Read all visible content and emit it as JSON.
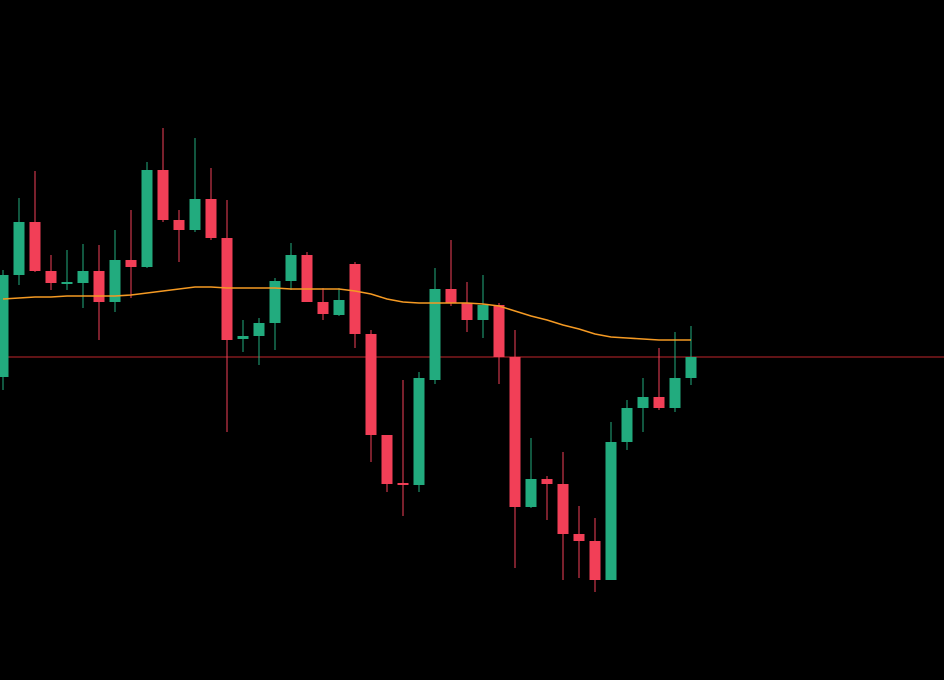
{
  "chart_data": {
    "type": "candlestick",
    "background": "#000000",
    "up_color": "#22ab7e",
    "down_color": "#f23f57",
    "ylim": [
      0,
      680
    ],
    "open": [
      303,
      405,
      458,
      409,
      396,
      397,
      409,
      378,
      420,
      413,
      510,
      460,
      450,
      481,
      442,
      341,
      344,
      357,
      399,
      425,
      378,
      365,
      416,
      346,
      245,
      197,
      195,
      300,
      391,
      377,
      360,
      375,
      323,
      173,
      201,
      196,
      146,
      139,
      100,
      238,
      272,
      283,
      272,
      302
    ],
    "high": [
      410,
      482,
      509,
      425,
      430,
      436,
      435,
      450,
      470,
      518,
      552,
      470,
      542,
      512,
      480,
      360,
      362,
      402,
      437,
      428,
      392,
      392,
      418,
      350,
      245,
      300,
      308,
      412,
      440,
      398,
      405,
      377,
      350,
      242,
      204,
      228,
      174,
      162,
      258,
      280,
      302,
      332,
      348,
      354
    ],
    "low": [
      290,
      395,
      408,
      390,
      390,
      372,
      340,
      368,
      382,
      412,
      458,
      418,
      448,
      440,
      248,
      328,
      315,
      330,
      390,
      378,
      360,
      364,
      332,
      218,
      188,
      164,
      188,
      296,
      374,
      348,
      342,
      296,
      112,
      172,
      160,
      100,
      102,
      88,
      100,
      230,
      248,
      270,
      268,
      295
    ],
    "close": [
      405,
      458,
      409,
      397,
      398,
      409,
      378,
      420,
      413,
      510,
      460,
      450,
      481,
      442,
      340,
      344,
      357,
      399,
      425,
      378,
      366,
      380,
      346,
      245,
      196,
      195,
      302,
      391,
      377,
      360,
      375,
      323,
      173,
      201,
      196,
      146,
      139,
      100,
      238,
      272,
      283,
      272,
      302,
      323
    ],
    "ma": {
      "color": "#f59a23",
      "values": [
        381,
        382,
        383,
        383,
        384,
        384,
        384,
        384,
        385,
        387,
        389,
        391,
        393,
        393,
        392,
        392,
        392,
        392,
        391,
        391,
        391,
        391,
        389,
        386,
        381,
        378,
        377,
        377,
        377,
        377,
        376,
        374,
        369,
        364,
        360,
        355,
        351,
        346,
        343,
        342,
        341,
        340,
        340,
        340
      ]
    },
    "price_line": {
      "value": 323,
      "color": "#c0262d"
    }
  }
}
